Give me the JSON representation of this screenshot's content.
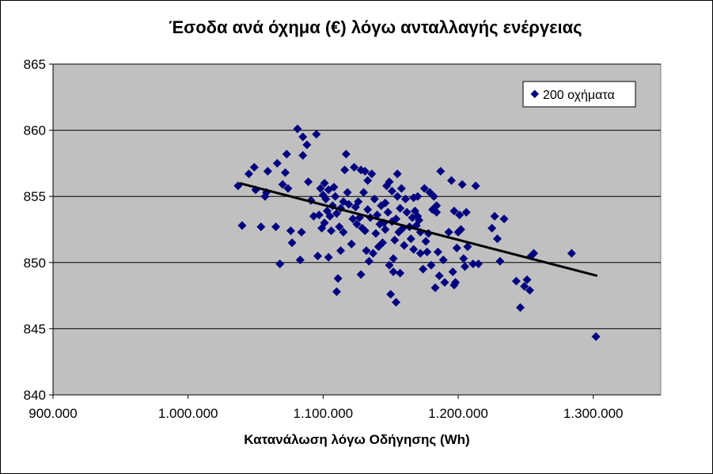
{
  "chart_data": {
    "type": "scatter",
    "title": "Έσοδα ανά όχημα (€) λόγω ανταλλαγής ενέργειας",
    "xlabel": "Κατανάλωση λόγω Οδήγησης (Wh)",
    "ylabel": "",
    "xlim": [
      900000,
      1350000
    ],
    "ylim": [
      840,
      865
    ],
    "x_ticks": [
      900000,
      1000000,
      1100000,
      1200000,
      1300000
    ],
    "x_tick_labels": [
      "900.000",
      "1.000.000",
      "1.100.000",
      "1.200.000",
      "1.300.000"
    ],
    "y_ticks": [
      840,
      845,
      850,
      855,
      860,
      865
    ],
    "y_tick_labels": [
      "840",
      "845",
      "850",
      "855",
      "860",
      "865"
    ],
    "grid": "horizontal",
    "plot_background": "#c0c0c0",
    "marker_color": "#000080",
    "trendline": {
      "x": [
        1038000,
        1303000
      ],
      "y": [
        856.0,
        849.0
      ],
      "color": "#000000"
    },
    "legend": {
      "position": "top-right",
      "label": "200 οχήματα"
    },
    "series": [
      {
        "name": "200 οχήματα",
        "points": [
          [
            1037000,
            855.8
          ],
          [
            1040000,
            852.8
          ],
          [
            1045000,
            856.7
          ],
          [
            1049000,
            857.2
          ],
          [
            1050000,
            855.5
          ],
          [
            1054000,
            852.7
          ],
          [
            1057000,
            855.0
          ],
          [
            1058000,
            855.3
          ],
          [
            1059000,
            856.9
          ],
          [
            1065000,
            852.7
          ],
          [
            1066000,
            857.5
          ],
          [
            1068000,
            849.9
          ],
          [
            1070000,
            855.9
          ],
          [
            1072000,
            856.8
          ],
          [
            1073000,
            858.2
          ],
          [
            1074000,
            855.6
          ],
          [
            1076000,
            852.4
          ],
          [
            1077000,
            851.5
          ],
          [
            1081000,
            860.1
          ],
          [
            1083000,
            850.2
          ],
          [
            1084000,
            852.3
          ],
          [
            1085000,
            859.5
          ],
          [
            1085000,
            858.1
          ],
          [
            1088000,
            858.9
          ],
          [
            1089000,
            856.1
          ],
          [
            1091000,
            854.7
          ],
          [
            1093000,
            853.5
          ],
          [
            1095000,
            859.7
          ],
          [
            1096000,
            850.5
          ],
          [
            1097000,
            853.6
          ],
          [
            1098000,
            855.6
          ],
          [
            1099000,
            852.6
          ],
          [
            1100000,
            855.1
          ],
          [
            1101000,
            853.0
          ],
          [
            1101000,
            856.0
          ],
          [
            1102000,
            854.8
          ],
          [
            1103000,
            853.9
          ],
          [
            1104000,
            850.4
          ],
          [
            1104000,
            855.5
          ],
          [
            1105000,
            853.5
          ],
          [
            1106000,
            852.4
          ],
          [
            1107000,
            854.3
          ],
          [
            1108000,
            855.7
          ],
          [
            1109000,
            855.0
          ],
          [
            1110000,
            847.8
          ],
          [
            1110000,
            853.7
          ],
          [
            1111000,
            848.8
          ],
          [
            1112000,
            852.7
          ],
          [
            1113000,
            854.1
          ],
          [
            1113000,
            850.9
          ],
          [
            1115000,
            852.3
          ],
          [
            1115000,
            854.6
          ],
          [
            1116000,
            857.0
          ],
          [
            1117000,
            858.2
          ],
          [
            1118000,
            855.3
          ],
          [
            1119000,
            854.4
          ],
          [
            1121000,
            851.4
          ],
          [
            1122000,
            853.3
          ],
          [
            1123000,
            857.2
          ],
          [
            1124000,
            854.2
          ],
          [
            1125000,
            852.9
          ],
          [
            1126000,
            854.6
          ],
          [
            1127000,
            853.4
          ],
          [
            1128000,
            849.1
          ],
          [
            1128000,
            857.0
          ],
          [
            1129000,
            852.6
          ],
          [
            1130000,
            855.3
          ],
          [
            1131000,
            856.9
          ],
          [
            1131000,
            852.4
          ],
          [
            1132000,
            850.9
          ],
          [
            1133000,
            854.0
          ],
          [
            1133000,
            856.2
          ],
          [
            1134000,
            850.1
          ],
          [
            1135000,
            853.4
          ],
          [
            1136000,
            856.7
          ],
          [
            1137000,
            850.7
          ],
          [
            1138000,
            854.8
          ],
          [
            1139000,
            852.2
          ],
          [
            1140000,
            853.6
          ],
          [
            1141000,
            851.2
          ],
          [
            1142000,
            852.9
          ],
          [
            1143000,
            854.3
          ],
          [
            1144000,
            851.5
          ],
          [
            1145000,
            853.0
          ],
          [
            1146000,
            852.5
          ],
          [
            1146000,
            854.5
          ],
          [
            1147000,
            855.8
          ],
          [
            1148000,
            853.8
          ],
          [
            1149000,
            849.8
          ],
          [
            1149000,
            856.1
          ],
          [
            1150000,
            847.6
          ],
          [
            1151000,
            853.1
          ],
          [
            1151000,
            855.4
          ],
          [
            1152000,
            850.3
          ],
          [
            1152000,
            849.3
          ],
          [
            1153000,
            851.7
          ],
          [
            1154000,
            847.0
          ],
          [
            1154000,
            853.3
          ],
          [
            1155000,
            855.0
          ],
          [
            1155000,
            856.7
          ],
          [
            1156000,
            852.3
          ],
          [
            1157000,
            849.2
          ],
          [
            1157000,
            854.1
          ],
          [
            1158000,
            855.6
          ],
          [
            1159000,
            852.6
          ],
          [
            1160000,
            851.3
          ],
          [
            1161000,
            854.8
          ],
          [
            1162000,
            853.8
          ],
          [
            1164000,
            852.7
          ],
          [
            1165000,
            851.8
          ],
          [
            1166000,
            853.4
          ],
          [
            1167000,
            854.9
          ],
          [
            1167000,
            851.0
          ],
          [
            1168000,
            853.9
          ],
          [
            1169000,
            852.8
          ],
          [
            1170000,
            853.5
          ],
          [
            1170000,
            855.0
          ],
          [
            1171000,
            853.2
          ],
          [
            1172000,
            850.7
          ],
          [
            1172000,
            852.3
          ],
          [
            1174000,
            849.5
          ],
          [
            1175000,
            855.6
          ],
          [
            1176000,
            851.6
          ],
          [
            1177000,
            850.8
          ],
          [
            1178000,
            852.2
          ],
          [
            1179000,
            855.3
          ],
          [
            1180000,
            849.8
          ],
          [
            1181000,
            854.0
          ],
          [
            1182000,
            855.0
          ],
          [
            1183000,
            848.1
          ],
          [
            1184000,
            854.3
          ],
          [
            1184000,
            853.8
          ],
          [
            1185000,
            850.8
          ],
          [
            1186000,
            849.0
          ],
          [
            1187000,
            856.9
          ],
          [
            1189000,
            850.2
          ],
          [
            1190000,
            848.5
          ],
          [
            1193000,
            852.3
          ],
          [
            1195000,
            856.2
          ],
          [
            1196000,
            849.3
          ],
          [
            1197000,
            848.3
          ],
          [
            1197000,
            853.9
          ],
          [
            1198000,
            848.5
          ],
          [
            1199000,
            851.1
          ],
          [
            1200000,
            852.3
          ],
          [
            1201000,
            853.6
          ],
          [
            1202000,
            852.5
          ],
          [
            1203000,
            855.9
          ],
          [
            1204000,
            850.3
          ],
          [
            1205000,
            849.7
          ],
          [
            1206000,
            853.8
          ],
          [
            1207000,
            851.2
          ],
          [
            1211000,
            849.9
          ],
          [
            1213000,
            855.8
          ],
          [
            1215000,
            849.9
          ],
          [
            1225000,
            852.6
          ],
          [
            1227000,
            853.5
          ],
          [
            1229000,
            851.8
          ],
          [
            1231000,
            850.1
          ],
          [
            1234000,
            853.3
          ],
          [
            1243000,
            848.6
          ],
          [
            1246000,
            846.6
          ],
          [
            1249000,
            848.2
          ],
          [
            1251000,
            848.7
          ],
          [
            1253000,
            847.9
          ],
          [
            1254000,
            850.5
          ],
          [
            1256000,
            850.7
          ],
          [
            1284000,
            850.7
          ],
          [
            1302000,
            844.4
          ]
        ]
      }
    ]
  }
}
